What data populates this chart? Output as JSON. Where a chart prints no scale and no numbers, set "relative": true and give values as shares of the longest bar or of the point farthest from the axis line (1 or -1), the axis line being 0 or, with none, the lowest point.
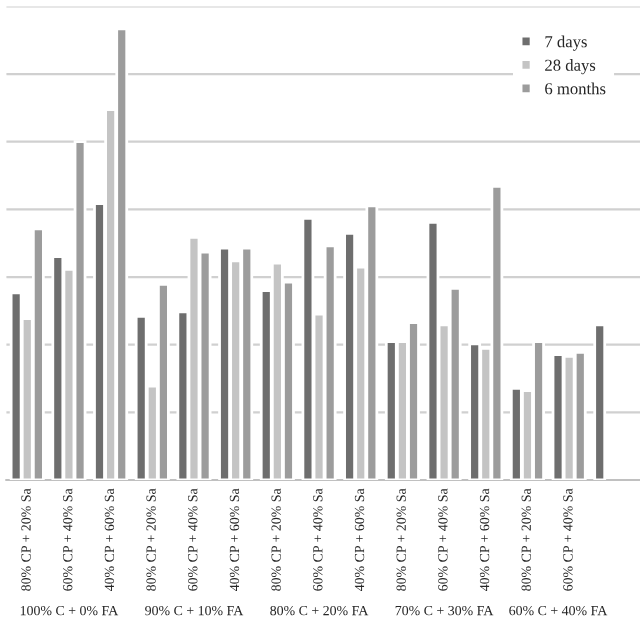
{
  "chart_data": {
    "type": "bar",
    "relative": true,
    "grid": "y",
    "legend": "top right",
    "categories": [
      "80% CP + 20% Sa",
      "60% CP + 40% Sa",
      "40% CP + 60% Sa",
      "80% CP + 20% Sa",
      "60% CP + 40% Sa",
      "40% CP + 60% Sa",
      "80% CP + 20% Sa",
      "60% CP + 40% Sa",
      "40% CP + 60% Sa",
      "80% CP + 20% Sa",
      "60% CP + 40% Sa",
      "40% CP + 60% Sa",
      "80% CP + 20% Sa",
      "60% CP + 40% Sa",
      null
    ],
    "series": [
      {
        "name": "7 days",
        "color": "#6e6e6e",
        "values": [
          0.415,
          0.495,
          0.613,
          0.363,
          0.373,
          0.514,
          0.42,
          0.58,
          0.547,
          0.307,
          0.571,
          0.302,
          0.203,
          0.278,
          0.344
        ]
      },
      {
        "name": "28 days",
        "color": "#c4c4c4",
        "values": [
          0.358,
          0.467,
          0.821,
          0.208,
          0.538,
          0.486,
          0.481,
          0.368,
          0.472,
          0.307,
          0.344,
          0.292,
          0.198,
          0.274,
          null
        ]
      },
      {
        "name": "6 months",
        "color": "#9c9c9c",
        "values": [
          0.557,
          0.75,
          1,
          0.434,
          0.505,
          0.514,
          0.439,
          0.519,
          0.608,
          0.349,
          0.425,
          0.651,
          0.307,
          0.283,
          null
        ]
      }
    ],
    "annotations": [
      "100% C + 0% FA",
      "90% C + 10% FA",
      "80% C + 20% FA",
      "70% C + 30% FA",
      "60% C + 40% FA"
    ]
  }
}
